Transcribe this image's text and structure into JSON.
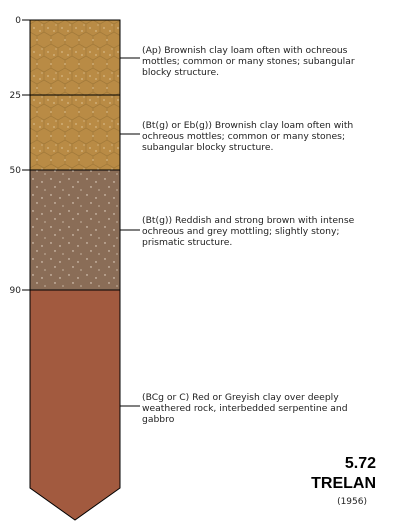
{
  "profile": {
    "depth_ticks": [
      "0",
      "25",
      "50",
      "90"
    ],
    "layers": [
      {
        "top_depth": 0,
        "bottom_depth": 25,
        "color": "#b98b45",
        "pattern": "stones-hex",
        "description": "(Ap) Brownish clay loam often with ochreous mottles; common or many stones; subangular blocky structure."
      },
      {
        "top_depth": 25,
        "bottom_depth": 50,
        "color": "#b98b45",
        "pattern": "stones-hex",
        "description": "(Bt(g) or Eb(g)) Brownish clay loam often with ochreous mottles; common or many stones; subangular blocky structure."
      },
      {
        "top_depth": 50,
        "bottom_depth": 90,
        "color": "#8a6d57",
        "pattern": "speckle",
        "description": "(Bt(g)) Reddish and strong brown with intense ochreous and grey mottling; slightly stony; prismatic structure."
      },
      {
        "top_depth": 90,
        "bottom_depth": null,
        "color": "#a25a3f",
        "pattern": "none",
        "description": "(BCg or C) Red or Greyish clay over deeply weathered rock, interbedded serpentine and gabbro"
      }
    ]
  },
  "soil": {
    "code": "5.72",
    "name": "TRELAN",
    "year": "(1956)"
  }
}
